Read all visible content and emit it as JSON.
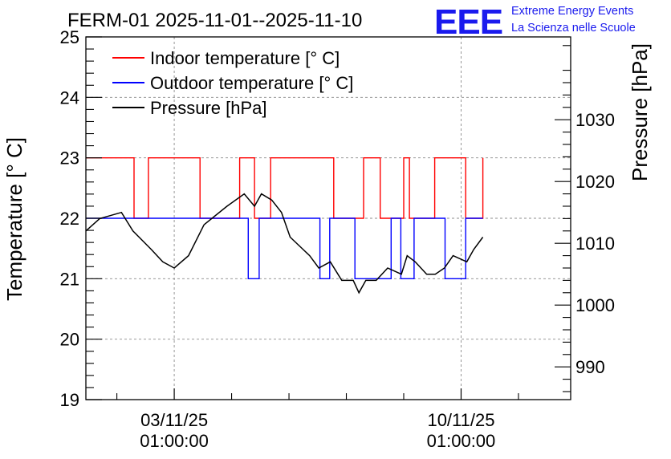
{
  "chart_data": {
    "type": "line",
    "title": "FERM-01 2025-11-01--2025-11-10",
    "logo": {
      "mark": "EEE",
      "line1": "Extreme Energy Events",
      "line2": "La Scienza nelle Scuole"
    },
    "ylabel_left": "Temperature [° C]",
    "ylabel_right": "Pressure [hPa]",
    "ylim_left": [
      19,
      25
    ],
    "ylim_right": [
      984.7,
      1043.4
    ],
    "xlim_days": [
      -1.54,
      6.91
    ],
    "grid": true,
    "legend_position": "top-left",
    "yticks_left": [
      19,
      20,
      21,
      22,
      23,
      24,
      25
    ],
    "yticks_right": [
      990,
      1000,
      1010,
      1020,
      1030
    ],
    "xticks": [
      {
        "day": 0,
        "date": "03/11/25",
        "time": "01:00:00"
      },
      {
        "day": 5,
        "date": "10/11/25",
        "time": "01:00:00"
      }
    ],
    "series": [
      {
        "name": "Indoor temperature [° C]",
        "color": "#ff0000",
        "axis": "left",
        "x": [
          -1.54,
          -0.7,
          -0.45,
          0.45,
          1.14,
          1.4,
          1.68,
          2.35,
          2.78,
          3.3,
          3.59,
          4.0,
          4.1,
          4.54,
          5.08,
          5.38
        ],
        "values": [
          23,
          22,
          23,
          22,
          23,
          22,
          23,
          23,
          22,
          23,
          22,
          23,
          22,
          23,
          22,
          23
        ]
      },
      {
        "name": "Outdoor temperature [° C]",
        "color": "#0000ff",
        "axis": "left",
        "x": [
          -1.54,
          1.29,
          1.48,
          2.54,
          2.71,
          3.15,
          3.78,
          3.95,
          4.18,
          4.72,
          5.08,
          5.38
        ],
        "values": [
          22,
          21,
          22,
          21,
          22,
          21,
          22,
          21,
          22,
          21,
          22,
          22
        ]
      },
      {
        "name": "Pressure [hPa]",
        "color": "#000000",
        "axis": "right",
        "x": [
          -1.54,
          -1.3,
          -0.92,
          -0.72,
          -0.4,
          -0.2,
          0,
          0.25,
          0.52,
          0.92,
          1.22,
          1.4,
          1.52,
          1.7,
          1.87,
          2.02,
          2.36,
          2.52,
          2.72,
          2.92,
          3.12,
          3.22,
          3.34,
          3.52,
          3.72,
          3.96,
          4.06,
          4.2,
          4.4,
          4.55,
          4.71,
          4.86,
          5.1,
          5.22,
          5.38
        ],
        "values": [
          1012,
          1014,
          1015,
          1012,
          1009,
          1007,
          1006,
          1008,
          1013,
          1016,
          1018,
          1016,
          1018,
          1017,
          1015,
          1011,
          1008,
          1006,
          1007,
          1004,
          1004,
          1002,
          1004,
          1004,
          1006,
          1005,
          1008,
          1007,
          1005,
          1005,
          1006,
          1008,
          1007,
          1009,
          1011
        ]
      }
    ]
  }
}
